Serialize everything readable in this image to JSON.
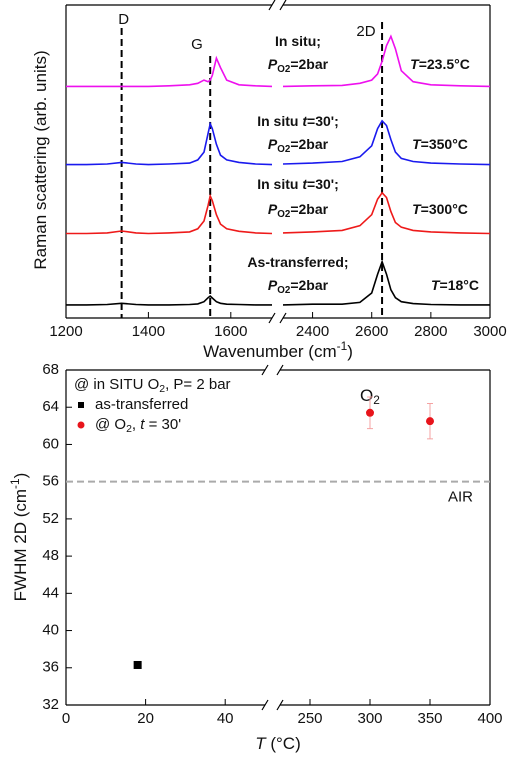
{
  "chart_data": [
    {
      "type": "line",
      "y_label": [
        {
          "text": "Raman scattering (arb. units)"
        }
      ],
      "x_label": [
        {
          "text": "Wavenumber (cm"
        },
        {
          "text": "-1",
          "style": "sup"
        },
        {
          "text": ")"
        }
      ],
      "x": [
        1200,
        1250,
        1300,
        1335,
        1370,
        1400,
        1450,
        1500,
        1520,
        1535,
        1545,
        1550,
        1555,
        1565,
        1575,
        1590,
        1620,
        1660,
        1700,
        2000,
        2300,
        2400,
        2500,
        2560,
        2600,
        2620,
        2635,
        2650,
        2665,
        2680,
        2700,
        2740,
        2800,
        2900,
        3000
      ],
      "xlim": [
        [
          1200,
          1700
        ],
        [
          2300,
          3000
        ]
      ],
      "xticks": [
        1200,
        1400,
        1600,
        2400,
        2600,
        2800,
        3000
      ],
      "ylim": [
        0,
        10
      ],
      "peaks": [
        {
          "label": "D",
          "x": 1335
        },
        {
          "label": "G",
          "x": 1550
        },
        {
          "label": "2D",
          "x": 2635
        }
      ],
      "series": [
        {
          "color": "#ee10ee",
          "label": [
            [
              {
                "text": "In situ;"
              }
            ],
            [
              {
                "text": "P",
                "style": "italic"
              },
              {
                "text": "O2",
                "style": "sub"
              },
              {
                "text": "=2bar"
              }
            ]
          ],
          "temperature": [
            {
              "text": "T",
              "style": "italic"
            },
            {
              "text": "=23.5°C"
            }
          ],
          "values": [
            7.4,
            7.4,
            7.4,
            7.4,
            7.4,
            7.4,
            7.42,
            7.45,
            7.5,
            7.6,
            7.55,
            7.6,
            7.75,
            8.3,
            8.0,
            7.6,
            7.45,
            7.42,
            7.4,
            null,
            7.4,
            7.42,
            7.43,
            7.5,
            7.6,
            7.8,
            8.2,
            8.7,
            9.0,
            8.6,
            7.9,
            7.55,
            7.45,
            7.42,
            7.4
          ]
        },
        {
          "color": "#1a1aee",
          "label": [
            [
              {
                "text": "In situ "
              },
              {
                "text": "t",
                "style": "italic"
              },
              {
                "text": "=30';"
              }
            ],
            [
              {
                "text": "P",
                "style": "italic"
              },
              {
                "text": "O2",
                "style": "sub"
              },
              {
                "text": "=2bar"
              }
            ]
          ],
          "temperature": [
            {
              "text": "T",
              "style": "italic"
            },
            {
              "text": "=350°C"
            }
          ],
          "values": [
            4.9,
            4.9,
            4.92,
            4.97,
            4.92,
            4.9,
            4.92,
            4.95,
            5.05,
            5.3,
            5.9,
            6.2,
            6.05,
            5.55,
            5.2,
            5.05,
            4.97,
            4.92,
            4.9,
            null,
            4.92,
            4.95,
            5.0,
            5.15,
            5.5,
            6.05,
            6.3,
            6.15,
            5.7,
            5.3,
            5.1,
            5.0,
            4.95,
            4.92,
            4.9
          ]
        },
        {
          "color": "#ee1a1a",
          "label": [
            [
              {
                "text": "In situ "
              },
              {
                "text": "t",
                "style": "italic"
              },
              {
                "text": "=30';"
              }
            ],
            [
              {
                "text": "P",
                "style": "italic"
              },
              {
                "text": "O2",
                "style": "sub"
              },
              {
                "text": "=2bar"
              }
            ]
          ],
          "temperature": [
            {
              "text": "T",
              "style": "italic"
            },
            {
              "text": "=300°C"
            }
          ],
          "values": [
            2.7,
            2.7,
            2.72,
            2.78,
            2.72,
            2.7,
            2.72,
            2.75,
            2.85,
            3.1,
            3.6,
            3.9,
            3.75,
            3.3,
            3.0,
            2.85,
            2.77,
            2.72,
            2.7,
            null,
            2.72,
            2.75,
            2.8,
            2.95,
            3.3,
            3.8,
            4.0,
            3.85,
            3.4,
            3.05,
            2.9,
            2.8,
            2.75,
            2.72,
            2.7
          ]
        },
        {
          "color": "#000000",
          "label": [
            [
              {
                "text": "As-transferred;"
              }
            ],
            [
              {
                "text": "P",
                "style": "italic"
              },
              {
                "text": "O2",
                "style": "sub"
              },
              {
                "text": "=2bar"
              }
            ]
          ],
          "temperature": [
            {
              "text": "T",
              "style": "italic"
            },
            {
              "text": "=18°C"
            }
          ],
          "values": [
            0.42,
            0.42,
            0.43,
            0.47,
            0.43,
            0.42,
            0.42,
            0.43,
            0.45,
            0.52,
            0.65,
            0.7,
            0.64,
            0.52,
            0.47,
            0.44,
            0.43,
            0.42,
            0.42,
            null,
            0.42,
            0.44,
            0.44,
            0.5,
            0.8,
            1.4,
            1.8,
            1.4,
            0.9,
            0.65,
            0.52,
            0.46,
            0.43,
            0.42,
            0.42
          ]
        }
      ]
    },
    {
      "type": "scatter",
      "annotation": [
        {
          "text": "@ in SITU O"
        },
        {
          "text": "2",
          "style": "sub"
        },
        {
          "text": ", P= 2 bar"
        }
      ],
      "o2_label": [
        {
          "text": "O"
        },
        {
          "text": "2",
          "style": "sub"
        }
      ],
      "reference": {
        "value": 56,
        "label": "AIR",
        "color": "#aaaaaa"
      },
      "legend": "upper left",
      "y_label": [
        {
          "text": "FWHM 2D (cm"
        },
        {
          "text": "-1",
          "style": "sup"
        },
        {
          "text": ")"
        }
      ],
      "x_label": [
        {
          "text": "T",
          "style": "italic"
        },
        {
          "text": " (°C)"
        }
      ],
      "xlim": [
        [
          0,
          50
        ],
        [
          225,
          400
        ]
      ],
      "xticks": [
        0,
        20,
        40,
        250,
        300,
        350,
        400
      ],
      "ylim": [
        32,
        68
      ],
      "yticks": [
        32,
        36,
        40,
        44,
        48,
        52,
        56,
        60,
        64,
        68
      ],
      "series": [
        {
          "name": [
            {
              "text": "as-transferred"
            }
          ],
          "color": "#000000",
          "error_color": "#000000",
          "marker": "square",
          "x": [
            18
          ],
          "values": [
            36.3
          ],
          "errors": [
            0.3
          ]
        },
        {
          "name": [
            {
              "text": "@ O"
            },
            {
              "text": "2",
              "style": "sub"
            },
            {
              "text": ", "
            },
            {
              "text": "t",
              "style": "italic"
            },
            {
              "text": " = 30'"
            }
          ],
          "color": "#e8141b",
          "error_color": "#f4a3a3",
          "marker": "circle",
          "x": [
            300,
            350
          ],
          "values": [
            63.4,
            62.5
          ],
          "errors": [
            1.7,
            1.9
          ]
        }
      ]
    }
  ]
}
